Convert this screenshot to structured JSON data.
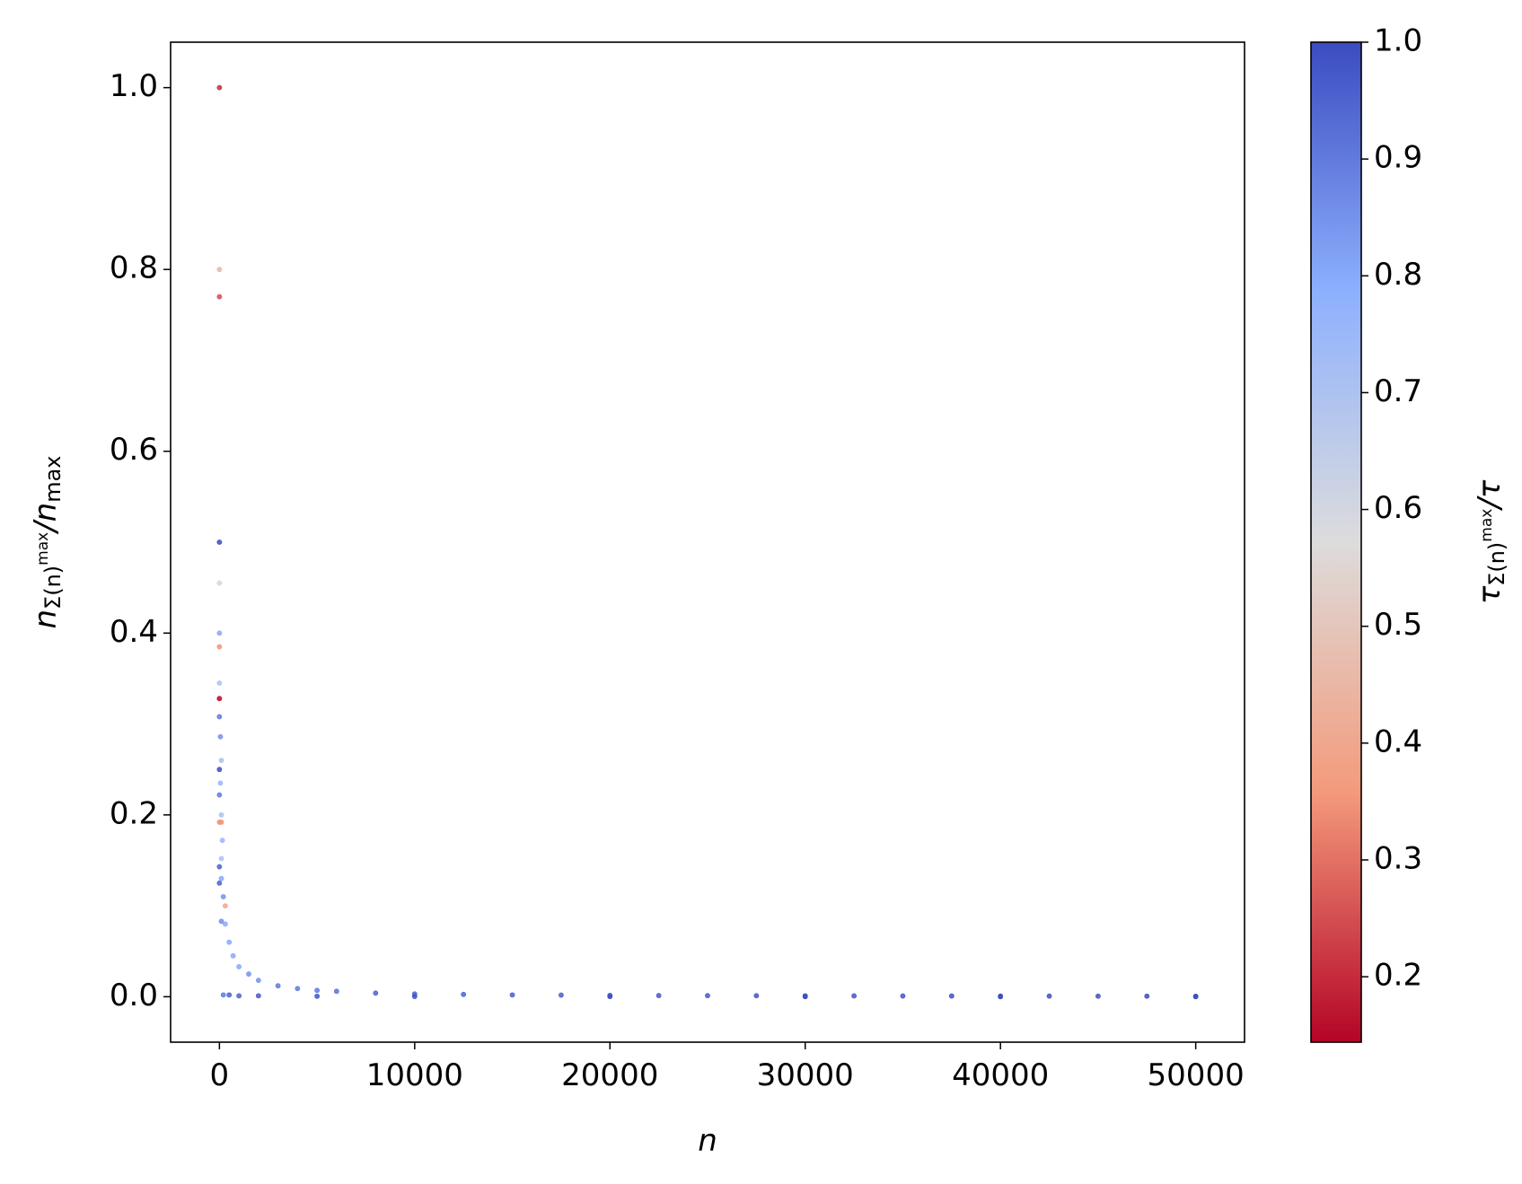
{
  "chart_data": {
    "type": "scatter",
    "x_label": "n",
    "y_label": [
      {
        "text": "n"
      },
      {
        "text": "Σ(n)",
        "shift": "sub"
      },
      {
        "text": "max",
        "shift": "subsup"
      },
      {
        "text": "/n"
      },
      {
        "text": "max",
        "shift": "sub"
      }
    ],
    "colorbar_label": [
      {
        "text": "τ"
      },
      {
        "text": "Σ(n)",
        "shift": "sub"
      },
      {
        "text": "max",
        "shift": "subsup"
      },
      {
        "text": "/τ"
      }
    ],
    "x": [
      0,
      0,
      0,
      0,
      0,
      0,
      0,
      0,
      0,
      0,
      50,
      0,
      100,
      50,
      0,
      100,
      0,
      100,
      150,
      0,
      100,
      0,
      100,
      200,
      300,
      100,
      300,
      500,
      700,
      1000,
      1500,
      2000,
      3000,
      4000,
      5000,
      6000,
      8000,
      10000,
      12500,
      15000,
      17500,
      20000,
      22500,
      25000,
      27500,
      30000,
      32500,
      35000,
      37500,
      40000,
      42500,
      45000,
      47500,
      50000,
      200,
      500,
      1000,
      2000,
      5000,
      10000,
      20000,
      30000,
      40000,
      50000
    ],
    "values": [
      1.0,
      0.8,
      0.77,
      0.5,
      0.455,
      0.4,
      0.385,
      0.345,
      0.328,
      0.308,
      0.286,
      0.25,
      0.26,
      0.235,
      0.222,
      0.2,
      0.192,
      0.192,
      0.172,
      0.143,
      0.152,
      0.125,
      0.13,
      0.11,
      0.1,
      0.083,
      0.08,
      0.06,
      0.045,
      0.033,
      0.025,
      0.018,
      0.012,
      0.009,
      0.007,
      0.006,
      0.004,
      0.003,
      0.0025,
      0.002,
      0.0018,
      0.0015,
      0.0013,
      0.0012,
      0.0011,
      0.001,
      0.0009,
      0.0008,
      0.0008,
      0.0007,
      0.0007,
      0.0006,
      0.0006,
      0.0005,
      0.002,
      0.002,
      0.001,
      0.001,
      0.0005,
      0.0003,
      0.0002,
      0.0001,
      0.0001,
      0.0001
    ],
    "color_values": [
      0.2,
      0.45,
      0.25,
      1.0,
      0.6,
      0.8,
      0.35,
      0.7,
      0.15,
      0.9,
      0.85,
      1.0,
      0.7,
      0.75,
      0.9,
      0.7,
      0.35,
      0.35,
      0.75,
      0.95,
      0.7,
      0.95,
      0.8,
      0.85,
      0.4,
      0.85,
      0.8,
      0.8,
      0.8,
      0.8,
      0.85,
      0.85,
      0.9,
      0.9,
      0.9,
      0.92,
      0.95,
      0.95,
      0.95,
      0.96,
      0.96,
      0.97,
      0.97,
      0.97,
      0.98,
      0.98,
      0.98,
      0.98,
      0.99,
      0.99,
      0.99,
      0.99,
      1.0,
      1.0,
      0.9,
      0.95,
      0.95,
      0.97,
      0.98,
      0.99,
      1.0,
      1.0,
      1.0,
      1.0
    ],
    "colormap": [
      "#b40426",
      "#f49a7b",
      "#dddcdc",
      "#8db0fe",
      "#3b4cc0"
    ],
    "xlim": [
      -2500,
      52500
    ],
    "xticks": [
      0,
      10000,
      20000,
      30000,
      40000,
      50000
    ],
    "ylim": [
      -0.05,
      1.05
    ],
    "yticks": [
      {
        "value": 0,
        "label": "0.0"
      },
      {
        "value": 0.2,
        "label": "0.2"
      },
      {
        "value": 0.4,
        "label": "0.4"
      },
      {
        "value": 0.6,
        "label": "0.6"
      },
      {
        "value": 0.8,
        "label": "0.8"
      },
      {
        "value": 1,
        "label": "1.0"
      }
    ],
    "clim": [
      0.144,
      1.0
    ],
    "cticks": [
      0.2,
      0.3,
      0.4,
      0.5,
      0.6,
      0.7,
      0.8,
      0.9,
      {
        "value": 1,
        "label": "1.0"
      }
    ],
    "grid": false
  }
}
